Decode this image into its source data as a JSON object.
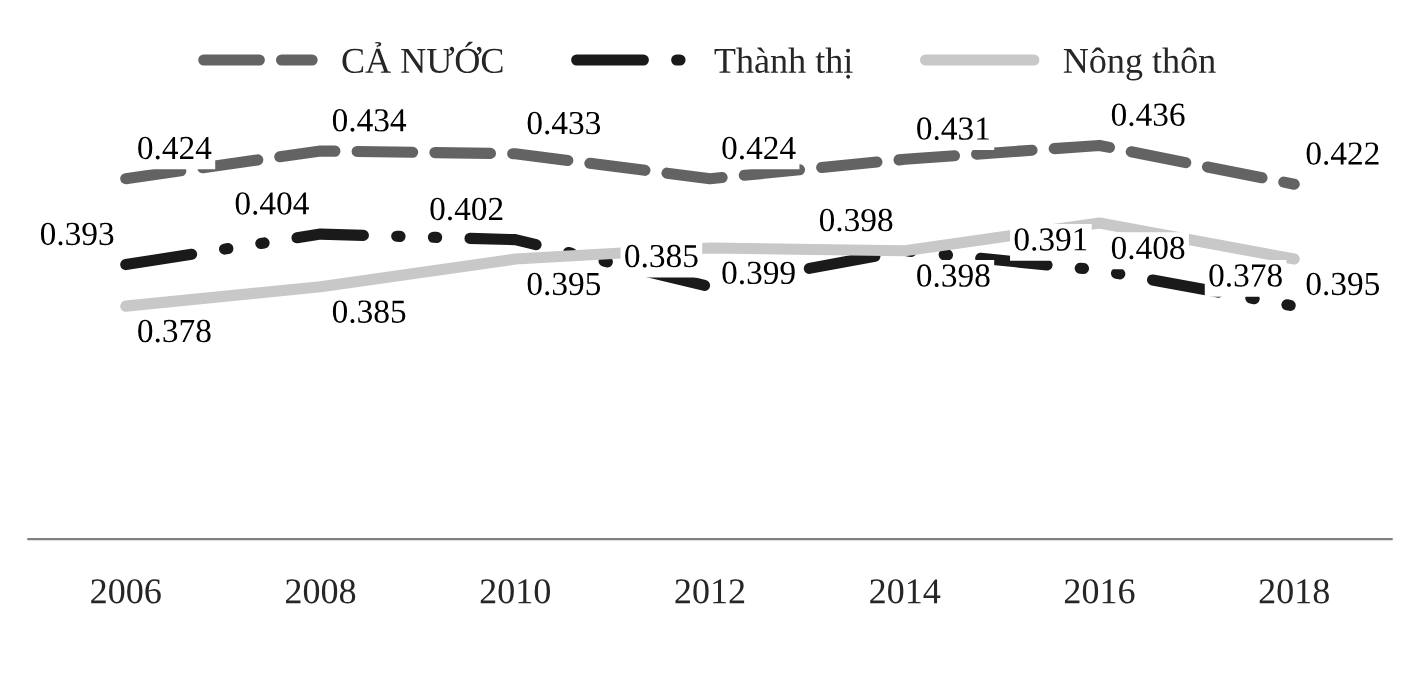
{
  "chart_data": {
    "type": "line",
    "categories": [
      "2006",
      "2008",
      "2010",
      "2012",
      "2014",
      "2016",
      "2018"
    ],
    "series": [
      {
        "name": "CẢ NƯỚC",
        "color": "#636363",
        "line_style": "dashed",
        "values": [
          0.424,
          0.434,
          0.433,
          0.424,
          0.431,
          0.436,
          0.422
        ]
      },
      {
        "name": "Thành thị",
        "color": "#1a1a1a",
        "line_style": "dashdot",
        "values": [
          0.393,
          0.404,
          0.402,
          0.385,
          0.398,
          0.391,
          0.378
        ]
      },
      {
        "name": "Nông thôn",
        "color": "#c8c8c8",
        "line_style": "solid",
        "values": [
          0.378,
          0.385,
          0.395,
          0.399,
          0.398,
          0.408,
          0.395
        ]
      }
    ],
    "data_labels": true,
    "legend": "top",
    "grid": false,
    "marker": "none"
  }
}
